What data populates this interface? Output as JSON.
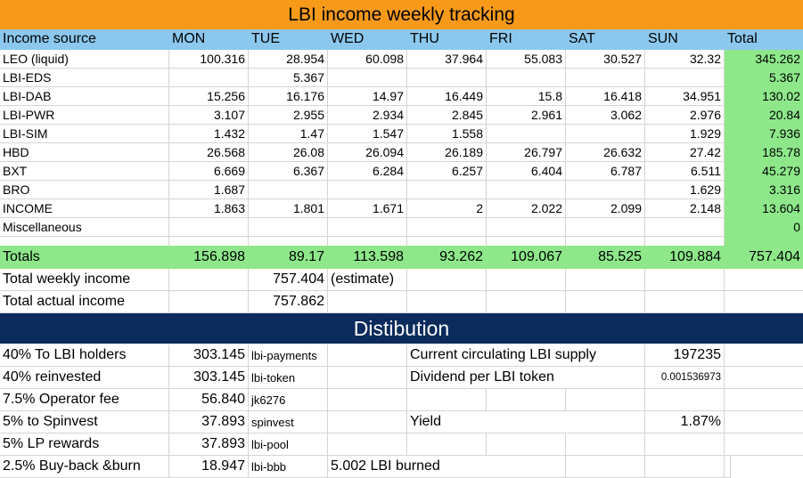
{
  "title": "LBI income weekly tracking",
  "columns": [
    "Income source",
    "MON",
    "TUE",
    "WED",
    "THU",
    "FRI",
    "SAT",
    "SUN",
    "Total"
  ],
  "rows": [
    {
      "source": "LEO (liquid)",
      "values": [
        "100.316",
        "28.954",
        "60.098",
        "37.964",
        "55.083",
        "30.527",
        "32.32"
      ],
      "total": "345.262"
    },
    {
      "source": "LBI-EDS",
      "values": [
        "",
        "5.367",
        "",
        "",
        "",
        "",
        ""
      ],
      "total": "5.367"
    },
    {
      "source": "LBI-DAB",
      "values": [
        "15.256",
        "16.176",
        "14.97",
        "16.449",
        "15.8",
        "16.418",
        "34.951"
      ],
      "total": "130.02"
    },
    {
      "source": "LBI-PWR",
      "values": [
        "3.107",
        "2.955",
        "2.934",
        "2.845",
        "2.961",
        "3.062",
        "2.976"
      ],
      "total": "20.84"
    },
    {
      "source": "LBI-SIM",
      "values": [
        "1.432",
        "1.47",
        "1.547",
        "1.558",
        "",
        "",
        "1.929"
      ],
      "total": "7.936"
    },
    {
      "source": "HBD",
      "values": [
        "26.568",
        "26.08",
        "26.094",
        "26.189",
        "26.797",
        "26.632",
        "27.42"
      ],
      "total": "185.78"
    },
    {
      "source": "BXT",
      "values": [
        "6.669",
        "6.367",
        "6.284",
        "6.257",
        "6.404",
        "6.787",
        "6.511"
      ],
      "total": "45.279"
    },
    {
      "source": "BRO",
      "values": [
        "1.687",
        "",
        "",
        "",
        "",
        "",
        "1.629"
      ],
      "total": "3.316"
    },
    {
      "source": "INCOME",
      "values": [
        "1.863",
        "1.801",
        "1.671",
        "2",
        "2.022",
        "2.099",
        "2.148"
      ],
      "total": "13.604"
    },
    {
      "source": "Miscellaneous",
      "values": [
        "",
        "",
        "",
        "",
        "",
        "",
        ""
      ],
      "total": "0"
    }
  ],
  "totals": {
    "label": "Totals",
    "values": [
      "156.898",
      "89.17",
      "113.598",
      "93.262",
      "109.067",
      "85.525",
      "109.884"
    ],
    "total": "757.404"
  },
  "summary": {
    "weekly_label": "Total weekly income",
    "weekly_value": "757.404",
    "weekly_note": "(estimate)",
    "actual_label": "Total actual income",
    "actual_value": "757.862"
  },
  "distribution": {
    "title": "Distibution",
    "items": [
      {
        "label": "40% To LBI holders",
        "value": "303.145",
        "account": "lbi-payments"
      },
      {
        "label": "40% reinvested",
        "value": "303.145",
        "account": "lbi-token"
      },
      {
        "label": "7.5% Operator fee",
        "value": "56.840",
        "account": "jk6276"
      },
      {
        "label": "5% to Spinvest",
        "value": "37.893",
        "account": "spinvest"
      },
      {
        "label": "5% LP rewards",
        "value": "37.893",
        "account": "lbi-pool"
      },
      {
        "label": "2.5% Buy-back &burn",
        "value": "18.947",
        "account": "lbi-bbb"
      }
    ],
    "burned_note": "5.002 LBI burned",
    "supply_label": "Current circulating LBI supply",
    "supply_value": "197235",
    "dividend_label": "Dividend per LBI token",
    "dividend_value": "0.001536973",
    "yield_label": "Yield",
    "yield_value": "1.87%"
  },
  "colors": {
    "title_banner": "#f79a1a",
    "header_row": "#8cc8ee",
    "totals_green": "#8ee88a",
    "distribution_banner": "#0a2b5c"
  }
}
